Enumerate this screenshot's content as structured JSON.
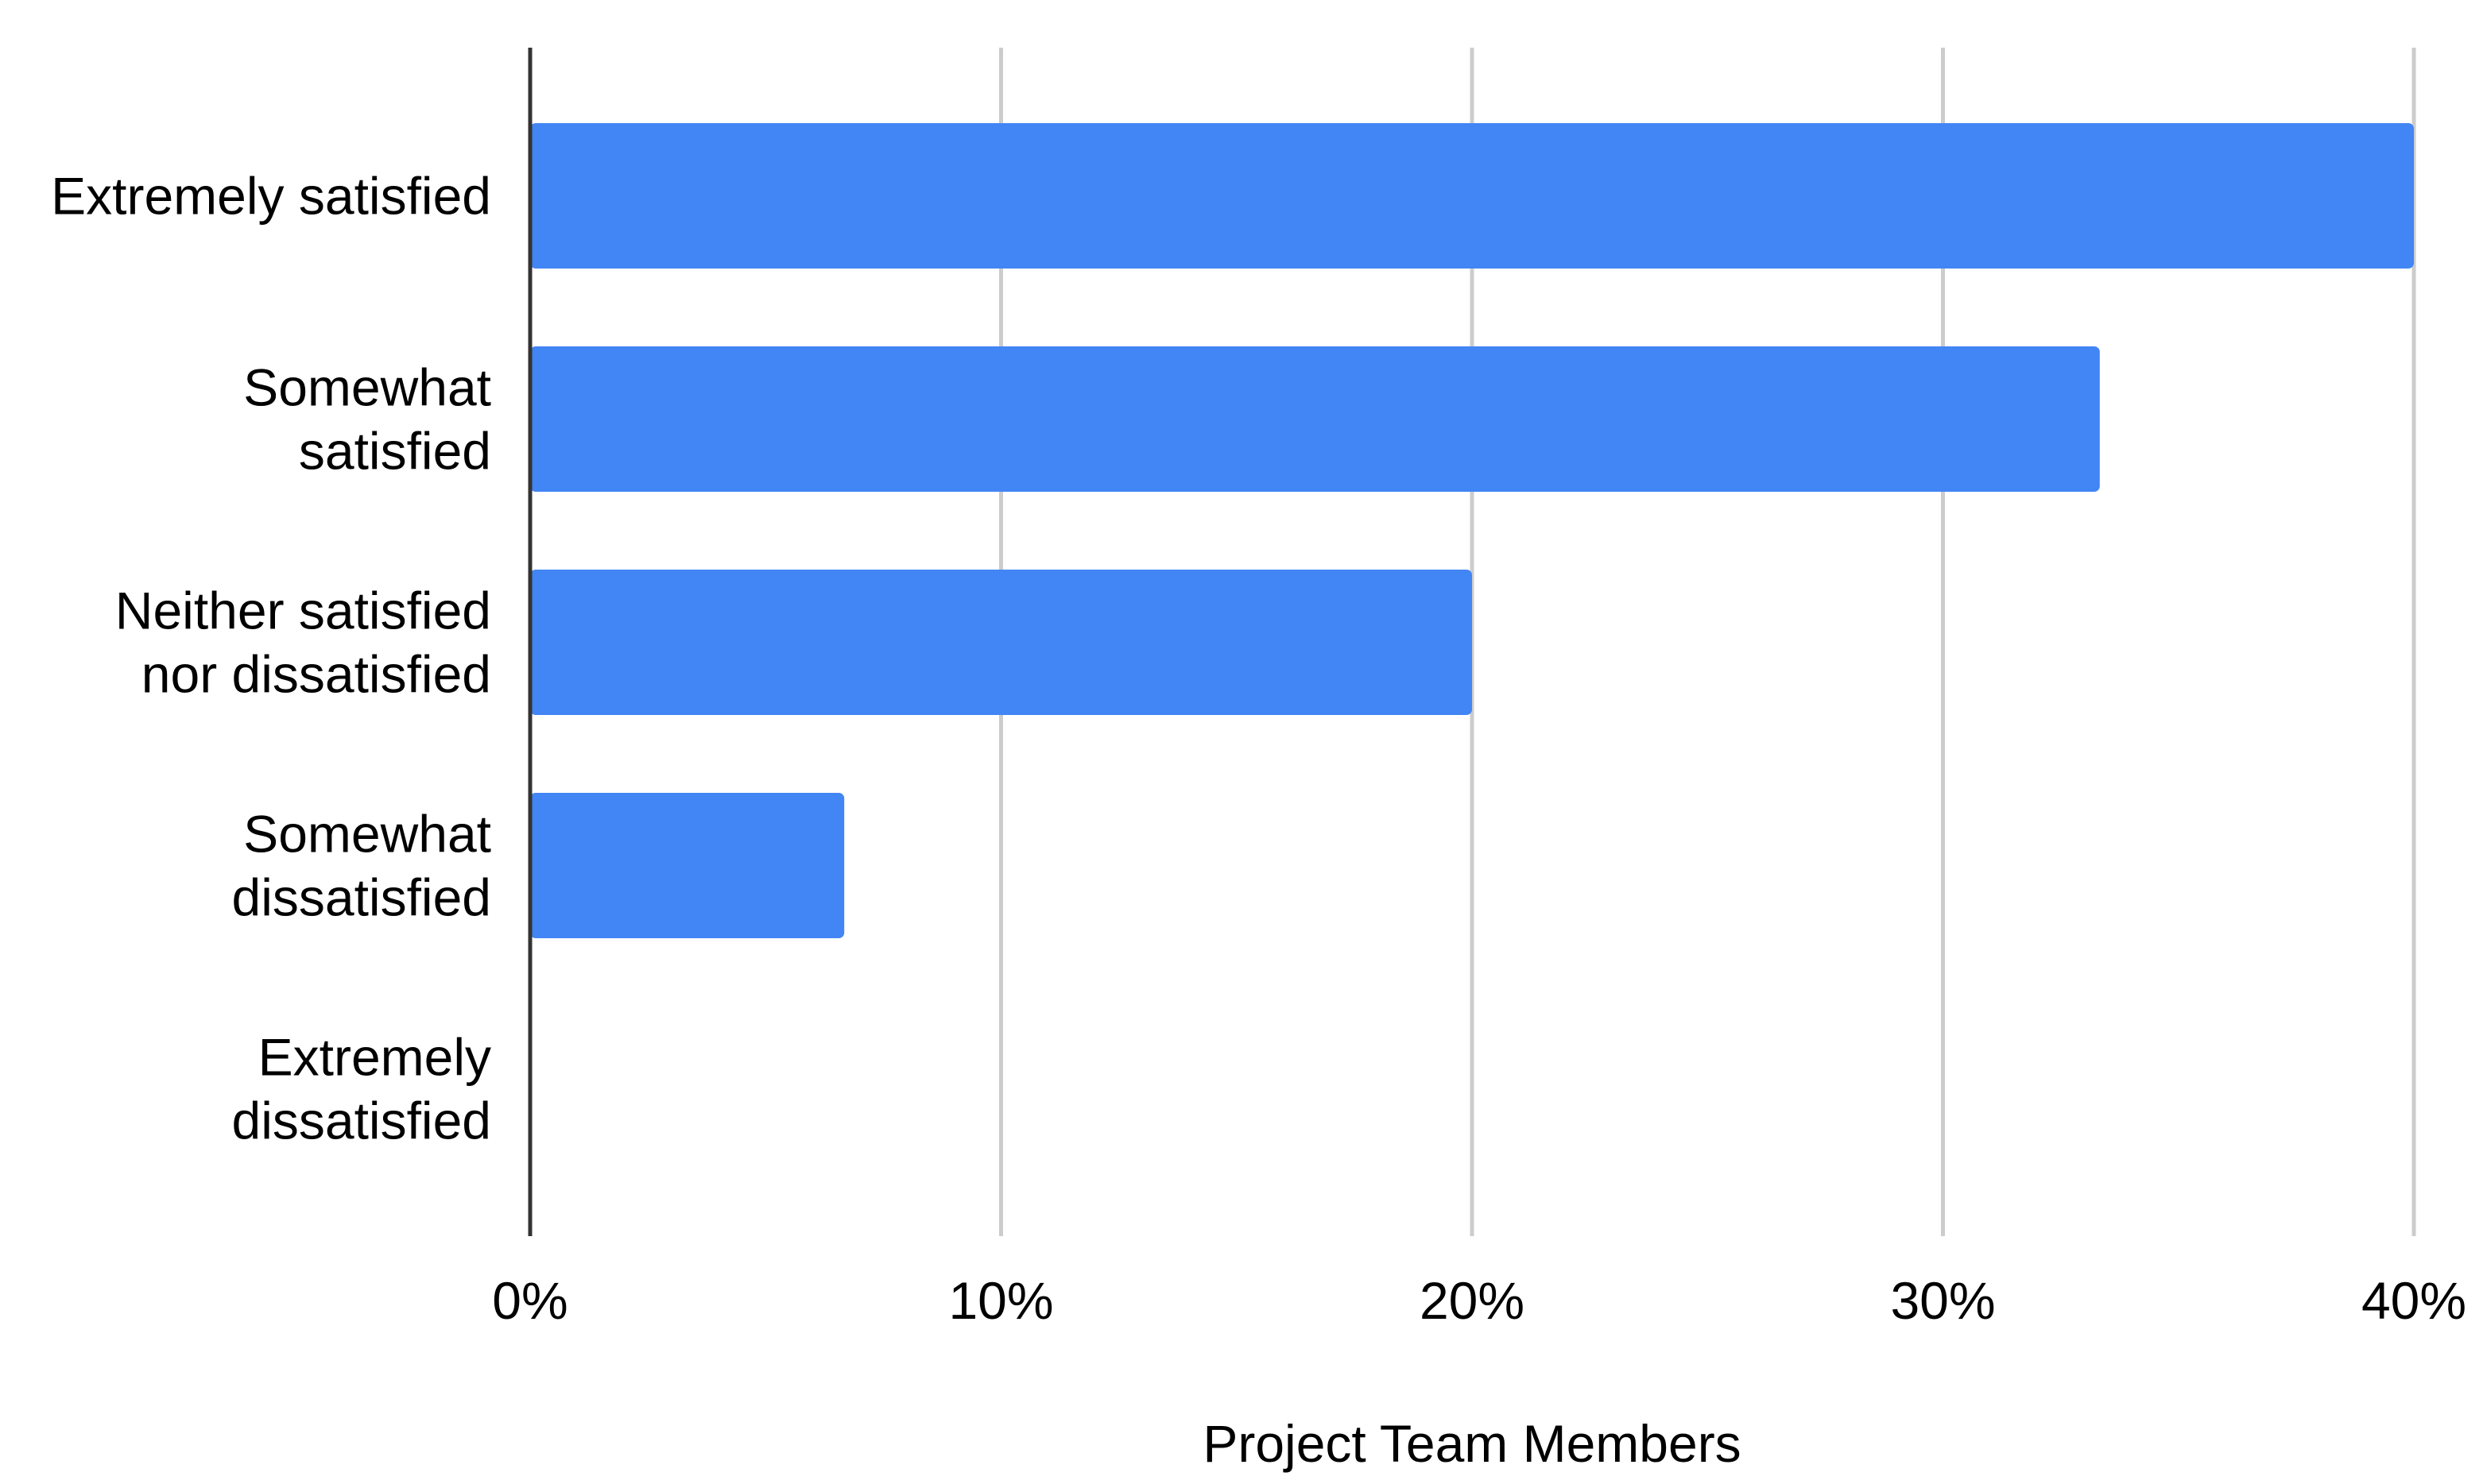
{
  "chart_data": {
    "type": "bar",
    "orientation": "horizontal",
    "categories": [
      [
        "Extremely satisfied"
      ],
      [
        "Somewhat",
        "satisfied"
      ],
      [
        "Neither satisfied",
        "nor dissatisfied"
      ],
      [
        "Somewhat",
        "dissatisfied"
      ],
      [
        "Extremely",
        "dissatisfied"
      ]
    ],
    "values": [
      0.4,
      0.3333,
      0.2,
      0.0667,
      0
    ],
    "xlabel": "Project Team Members",
    "ylabel": "",
    "xlim": [
      0,
      0.4
    ],
    "x_ticks": [
      0,
      0.1,
      0.2,
      0.3,
      0.4
    ],
    "x_tick_labels": [
      "0%",
      "10%",
      "20%",
      "30%",
      "40%"
    ],
    "grid": "vertical",
    "legend": "none",
    "bar_color": "#4285F4",
    "gridline_color": "#CCCCCC",
    "axis_color": "#333333"
  }
}
